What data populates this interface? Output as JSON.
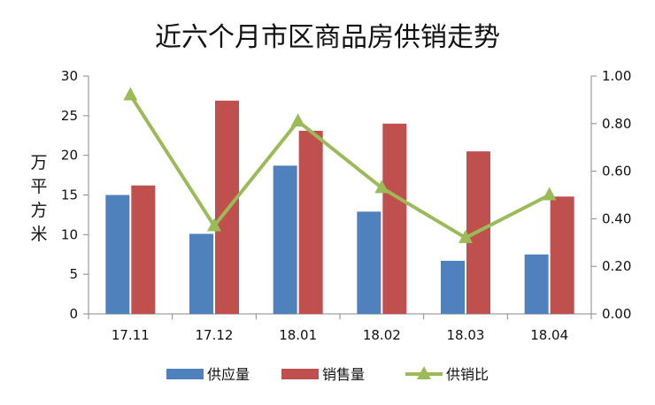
{
  "chart_data": {
    "type": "bar",
    "title": "近六个月市区商品房供销走势",
    "ylabel": "万平方米",
    "ylabel_chars": [
      "万",
      "平",
      "方",
      "米"
    ],
    "categories": [
      "17.11",
      "17.12",
      "18.01",
      "18.02",
      "18.03",
      "18.04"
    ],
    "ylim": [
      0,
      30
    ],
    "y_ticks": [
      "0",
      "5",
      "10",
      "15",
      "20",
      "25",
      "30"
    ],
    "y2lim": [
      0,
      1
    ],
    "y2_ticks": [
      "0.00",
      "0.20",
      "0.40",
      "0.60",
      "0.80",
      "1.00"
    ],
    "series": [
      {
        "name": "供应量",
        "axis": "left",
        "kind": "bar",
        "color": "#4f81bd",
        "values": [
          15.0,
          10.1,
          18.7,
          12.9,
          6.7,
          7.5
        ]
      },
      {
        "name": "销售量",
        "axis": "left",
        "kind": "bar",
        "color": "#c0504d",
        "values": [
          16.2,
          26.9,
          23.1,
          24.0,
          20.5,
          14.8
        ]
      },
      {
        "name": "供销比",
        "axis": "right",
        "kind": "line",
        "color": "#9bbb59",
        "values": [
          0.92,
          0.37,
          0.81,
          0.53,
          0.32,
          0.5
        ]
      }
    ],
    "grid": false,
    "legend_position": "bottom"
  }
}
